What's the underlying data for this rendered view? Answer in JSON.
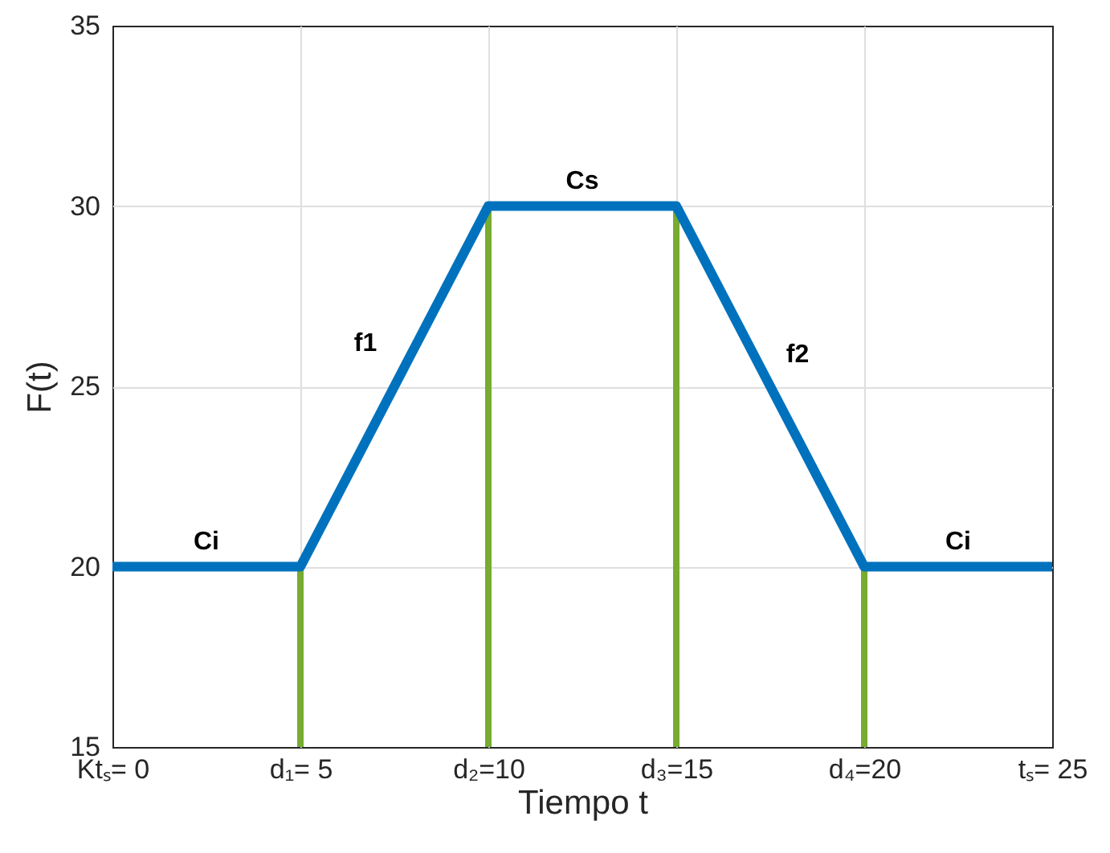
{
  "chart_data": {
    "type": "line",
    "xlabel": "Tiempo t",
    "ylabel": "F(t)",
    "xlim": [
      0,
      25
    ],
    "ylim": [
      15,
      35
    ],
    "xticks": [
      {
        "value": 0,
        "label": "Ktₛ= 0"
      },
      {
        "value": 5,
        "label": "d₁= 5"
      },
      {
        "value": 10,
        "label": "d₂=10"
      },
      {
        "value": 15,
        "label": "d₃=15"
      },
      {
        "value": 20,
        "label": "d₄=20"
      },
      {
        "value": 25,
        "label": "tₛ= 25"
      }
    ],
    "yticks": [
      15,
      20,
      25,
      30,
      35
    ],
    "grid": true,
    "series": [
      {
        "type": "bar",
        "color": "#77ac30",
        "x": [
          5,
          10,
          15,
          20
        ],
        "base": [
          15,
          15,
          15,
          15
        ],
        "values": [
          5,
          15,
          15,
          5
        ]
      },
      {
        "color": "#0072bd",
        "x": [
          0,
          5,
          10,
          15,
          20,
          25
        ],
        "values": [
          20,
          20,
          30,
          30,
          20,
          20
        ]
      }
    ],
    "annotations": [
      {
        "text": "Ci",
        "x": 2.5,
        "y": 20
      },
      {
        "text": "f1",
        "x": 7.5,
        "y": 25
      },
      {
        "text": "Cs",
        "x": 12.5,
        "y": 30
      },
      {
        "text": "f2",
        "x": 17.5,
        "y": 25
      },
      {
        "text": "Ci",
        "x": 22.5,
        "y": 20
      }
    ]
  }
}
